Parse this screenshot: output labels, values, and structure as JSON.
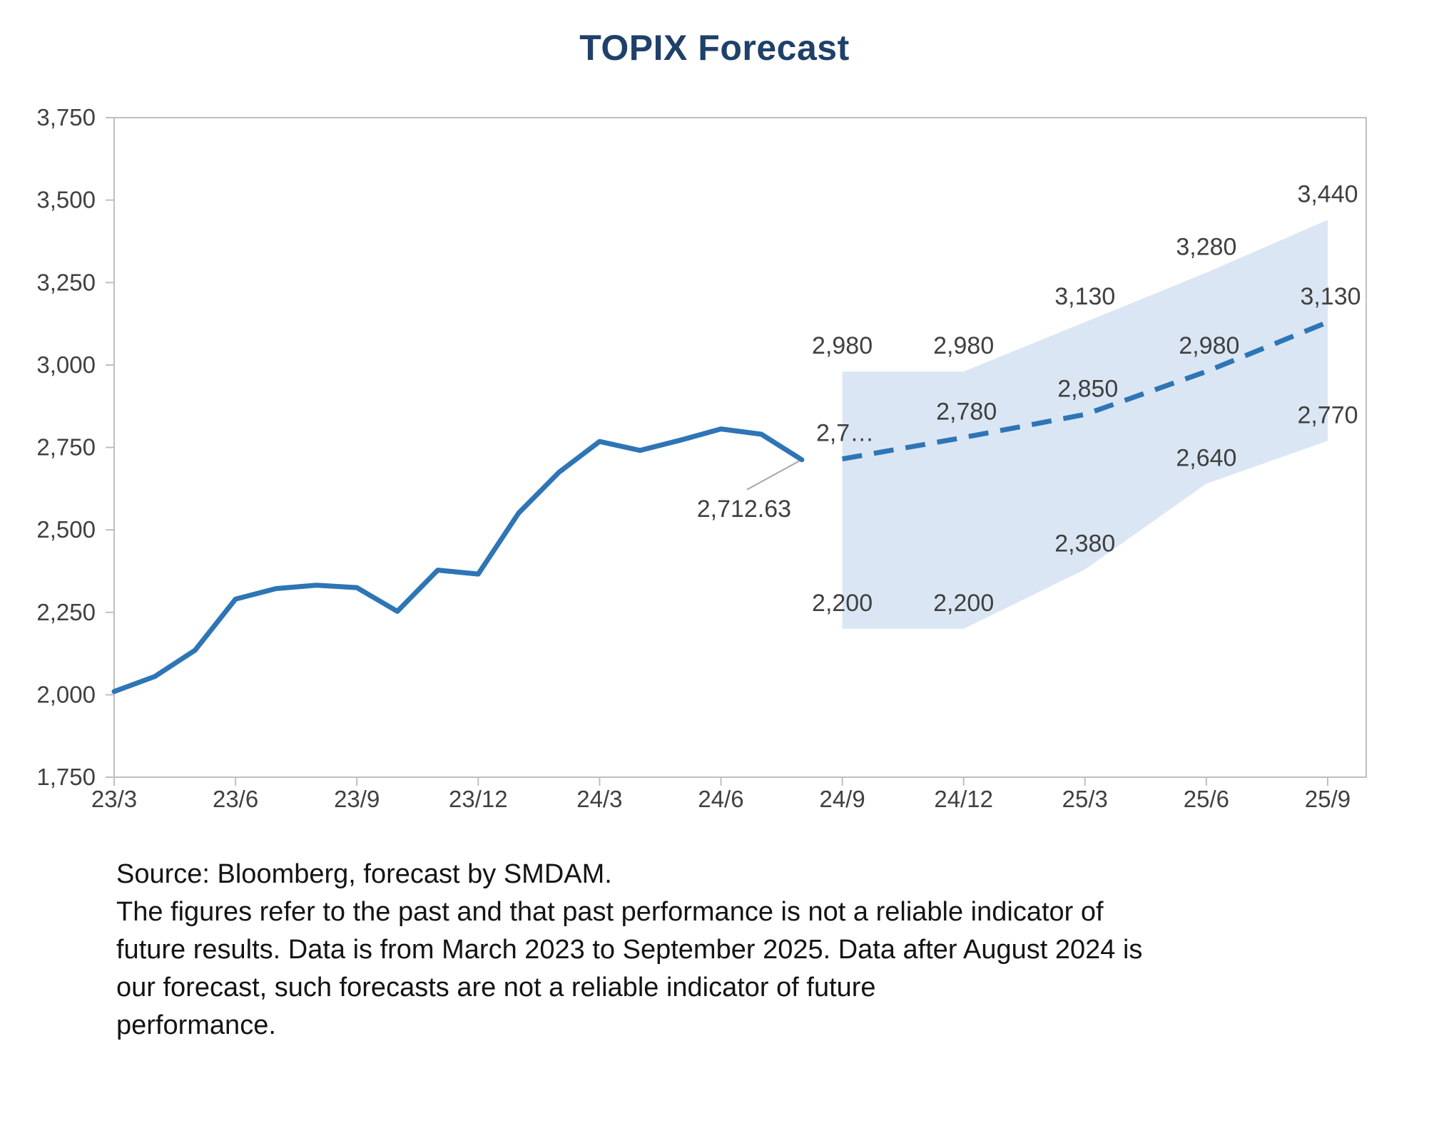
{
  "title": "TOPIX Forecast",
  "footer": {
    "lines": [
      "Source: Bloomberg, forecast by SMDAM.",
      "The figures refer to the past and that past performance is not a reliable indicator of",
      "future results. Data is from March 2023 to September 2025. Data after August 2024 is",
      "our forecast, such forecasts are not a reliable indicator of future",
      "performance."
    ]
  },
  "chart_data": {
    "type": "line",
    "title": "TOPIX Forecast",
    "x_axis": {
      "tick_labels": [
        "23/3",
        "23/6",
        "23/9",
        "23/12",
        "24/3",
        "24/6",
        "24/9",
        "24/12",
        "25/3",
        "25/6",
        "25/9"
      ],
      "months_per_tick": 3
    },
    "y_axis": {
      "min": 1750,
      "max": 3750,
      "step": 250,
      "tick_labels": [
        "1,750",
        "2,000",
        "2,250",
        "2,500",
        "2,750",
        "3,000",
        "3,250",
        "3,500",
        "3,750"
      ]
    },
    "grid": "off",
    "legend": "none",
    "colors": {
      "line": "#2E75B6",
      "band": "#DAE6F3",
      "title": "#1F4068",
      "labels": "#404040",
      "axis": "#BFBFBF",
      "leader": "#A6A6A6"
    },
    "series": [
      {
        "name": "TOPIX history",
        "style": "solid",
        "start_month": 0,
        "values": [
          2010,
          2055,
          2135,
          2290,
          2322,
          2332,
          2325,
          2253,
          2378,
          2366,
          2551,
          2675,
          2768,
          2741,
          2772,
          2806,
          2790,
          2712.63
        ]
      },
      {
        "name": "TOPIX forecast",
        "style": "dashed",
        "months": [
          18,
          21,
          24,
          27,
          30
        ],
        "values": [
          2715,
          2780,
          2850,
          2980,
          3130
        ],
        "labels": [
          "2,7…",
          "2,780",
          "2,850",
          "2,980",
          "3,130"
        ]
      }
    ],
    "forecast_band": {
      "months": [
        18,
        21,
        24,
        27,
        30
      ],
      "upper": [
        2980,
        2980,
        3130,
        3280,
        3440
      ],
      "lower": [
        2200,
        2200,
        2380,
        2640,
        2770
      ],
      "upper_labels": [
        "2,980",
        "2,980",
        "3,130",
        "3,280",
        "3,440"
      ],
      "lower_labels": [
        "2,200",
        "2,200",
        "2,380",
        "2,640",
        "2,770"
      ]
    },
    "annotation": {
      "text": "2,712.63",
      "month": 17,
      "value": 2712.63
    }
  }
}
